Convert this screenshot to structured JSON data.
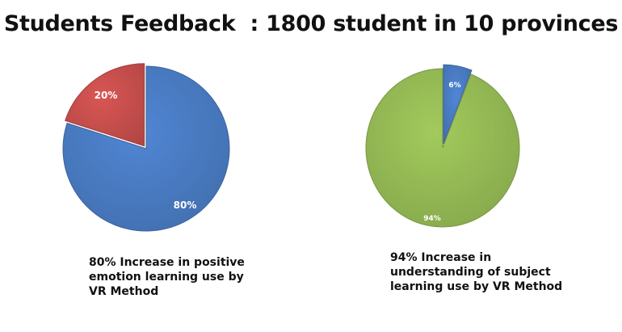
{
  "title": "Students Feedback  : 1800 student in 10 provinces",
  "captions": [
    "80% Increase in positive emotion learning use by VR Method",
    "94% Increase in understanding of subject learning use by VR Method"
  ],
  "chart_data": [
    {
      "type": "pie",
      "title": "",
      "slices": [
        {
          "label": "80%",
          "value": 80,
          "color": "#4a7cc4"
        },
        {
          "label": "20%",
          "value": 20,
          "color": "#c9504d"
        }
      ],
      "caption": "80% Increase in positive emotion learning use by VR Method"
    },
    {
      "type": "pie",
      "title": "",
      "slices": [
        {
          "label": "6%",
          "value": 6,
          "color": "#4a7cc4"
        },
        {
          "label": "94%",
          "value": 94,
          "color": "#96bb55"
        }
      ],
      "caption": "94% Increase in understanding of subject learning use by VR Method"
    }
  ]
}
